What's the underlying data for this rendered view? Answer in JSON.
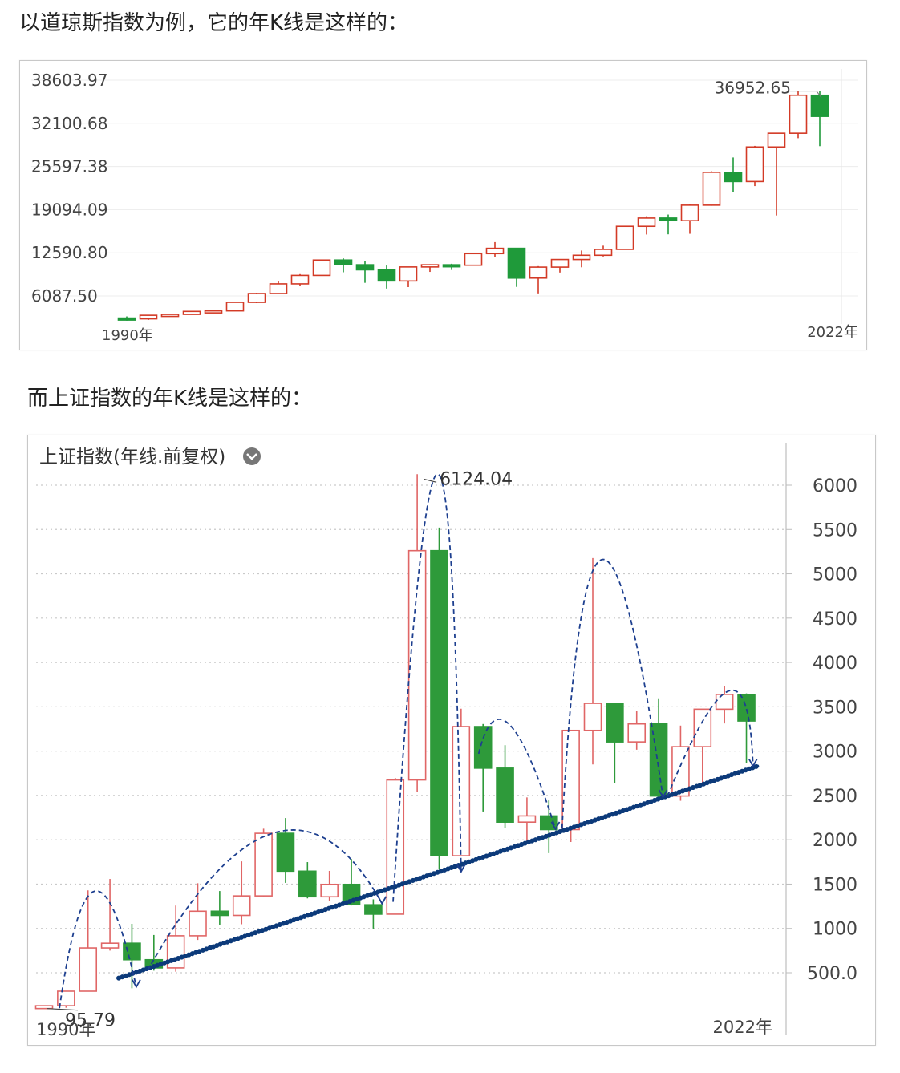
{
  "text": {
    "intro_dow": "以道琼斯指数为例，它的年K线是这样的：",
    "intro_sh": "而上证指数的年K线是这样的："
  },
  "colors": {
    "up": "#d33a26",
    "down": "#1f9a3a",
    "trend": "#0c3a7a",
    "arc": "#1d3f8f"
  },
  "chart_data": [
    {
      "type": "candlestick",
      "subject": "道琼斯指数 年K线",
      "y_ticks": [
        "38603.97",
        "32100.68",
        "25597.38",
        "19094.09",
        "12590.80",
        "6087.50"
      ],
      "x_start_label": "1990年",
      "x_end_label": "2022年",
      "annotation": "36952.65",
      "ylim": [
        0,
        40000
      ],
      "candles": [
        {
          "year": 1990,
          "o": 2753,
          "h": 3000,
          "l": 2365,
          "c": 2634
        },
        {
          "year": 1991,
          "o": 2634,
          "h": 3168,
          "l": 2470,
          "c": 3169
        },
        {
          "year": 1992,
          "o": 3169,
          "h": 3413,
          "l": 3136,
          "c": 3301
        },
        {
          "year": 1993,
          "o": 3301,
          "h": 3794,
          "l": 3242,
          "c": 3754
        },
        {
          "year": 1994,
          "o": 3754,
          "h": 3978,
          "l": 3593,
          "c": 3834
        },
        {
          "year": 1995,
          "o": 3834,
          "h": 5216,
          "l": 3832,
          "c": 5117
        },
        {
          "year": 1996,
          "o": 5117,
          "h": 6560,
          "l": 5000,
          "c": 6448
        },
        {
          "year": 1997,
          "o": 6448,
          "h": 8259,
          "l": 6391,
          "c": 7908
        },
        {
          "year": 1998,
          "o": 7908,
          "h": 9374,
          "l": 7539,
          "c": 9181
        },
        {
          "year": 1999,
          "o": 9181,
          "h": 11568,
          "l": 9121,
          "c": 11497
        },
        {
          "year": 2000,
          "o": 11497,
          "h": 11750,
          "l": 9654,
          "c": 10787
        },
        {
          "year": 2001,
          "o": 10787,
          "h": 11350,
          "l": 8062,
          "c": 10021
        },
        {
          "year": 2002,
          "o": 10021,
          "h": 10673,
          "l": 7197,
          "c": 8342
        },
        {
          "year": 2003,
          "o": 8342,
          "h": 10454,
          "l": 7416,
          "c": 10454
        },
        {
          "year": 2004,
          "o": 10454,
          "h": 10868,
          "l": 9708,
          "c": 10783
        },
        {
          "year": 2005,
          "o": 10783,
          "h": 10940,
          "l": 10000,
          "c": 10718
        },
        {
          "year": 2006,
          "o": 10718,
          "h": 12510,
          "l": 10667,
          "c": 12463
        },
        {
          "year": 2007,
          "o": 12463,
          "h": 14198,
          "l": 11939,
          "c": 13265
        },
        {
          "year": 2008,
          "o": 13265,
          "h": 13279,
          "l": 7449,
          "c": 8776
        },
        {
          "year": 2009,
          "o": 8776,
          "h": 10580,
          "l": 6470,
          "c": 10428
        },
        {
          "year": 2010,
          "o": 10428,
          "h": 11625,
          "l": 9614,
          "c": 11578
        },
        {
          "year": 2011,
          "o": 11578,
          "h": 12929,
          "l": 10404,
          "c": 12218
        },
        {
          "year": 2012,
          "o": 12218,
          "h": 13661,
          "l": 12035,
          "c": 13104
        },
        {
          "year": 2013,
          "o": 13104,
          "h": 16588,
          "l": 13104,
          "c": 16577
        },
        {
          "year": 2014,
          "o": 16577,
          "h": 18103,
          "l": 15341,
          "c": 17823
        },
        {
          "year": 2015,
          "o": 17823,
          "h": 18351,
          "l": 15370,
          "c": 17425
        },
        {
          "year": 2016,
          "o": 17425,
          "h": 19988,
          "l": 15450,
          "c": 19763
        },
        {
          "year": 2017,
          "o": 19763,
          "h": 24876,
          "l": 19677,
          "c": 24719
        },
        {
          "year": 2018,
          "o": 24719,
          "h": 26951,
          "l": 21713,
          "c": 23327
        },
        {
          "year": 2019,
          "o": 23327,
          "h": 28701,
          "l": 22638,
          "c": 28538
        },
        {
          "year": 2020,
          "o": 28538,
          "h": 30606,
          "l": 18214,
          "c": 30606
        },
        {
          "year": 2021,
          "o": 30606,
          "h": 36952,
          "l": 29856,
          "c": 36338
        },
        {
          "year": 2022,
          "o": 36338,
          "h": 36952,
          "l": 28660,
          "c": 33147
        }
      ]
    },
    {
      "type": "candlestick",
      "title": "上证指数(年线.前复权)",
      "y_ticks": [
        "6000",
        "5500",
        "5000",
        "4500",
        "4000",
        "3500",
        "3000",
        "2500",
        "2000",
        "1500",
        "1000",
        "500.0"
      ],
      "x_start_label": "1990年",
      "x_end_label": "2022年",
      "annotations": [
        "6124.04",
        "95.79"
      ],
      "ylim": [
        0,
        6300
      ],
      "candles": [
        {
          "year": 1990,
          "o": 96,
          "h": 128,
          "l": 95.79,
          "c": 128
        },
        {
          "year": 1991,
          "o": 128,
          "h": 292,
          "l": 105,
          "c": 292
        },
        {
          "year": 1992,
          "o": 292,
          "h": 1429,
          "l": 293,
          "c": 780
        },
        {
          "year": 1993,
          "o": 780,
          "h": 1558,
          "l": 750,
          "c": 833
        },
        {
          "year": 1994,
          "o": 833,
          "h": 1052,
          "l": 325,
          "c": 647
        },
        {
          "year": 1995,
          "o": 647,
          "h": 926,
          "l": 524,
          "c": 555
        },
        {
          "year": 1996,
          "o": 555,
          "h": 1258,
          "l": 512,
          "c": 917
        },
        {
          "year": 1997,
          "o": 917,
          "h": 1510,
          "l": 870,
          "c": 1194
        },
        {
          "year": 1998,
          "o": 1194,
          "h": 1422,
          "l": 1043,
          "c": 1147
        },
        {
          "year": 1999,
          "o": 1147,
          "h": 1756,
          "l": 1047,
          "c": 1367
        },
        {
          "year": 2000,
          "o": 1367,
          "h": 2125,
          "l": 1361,
          "c": 2073
        },
        {
          "year": 2001,
          "o": 2073,
          "h": 2245,
          "l": 1514,
          "c": 1646
        },
        {
          "year": 2002,
          "o": 1646,
          "h": 1748,
          "l": 1339,
          "c": 1357
        },
        {
          "year": 2003,
          "o": 1357,
          "h": 1649,
          "l": 1311,
          "c": 1497
        },
        {
          "year": 2004,
          "o": 1497,
          "h": 1783,
          "l": 1259,
          "c": 1267
        },
        {
          "year": 2005,
          "o": 1267,
          "h": 1328,
          "l": 998,
          "c": 1161
        },
        {
          "year": 2006,
          "o": 1161,
          "h": 2698,
          "l": 1161,
          "c": 2675
        },
        {
          "year": 2007,
          "o": 2675,
          "h": 6124.04,
          "l": 2541,
          "c": 5261
        },
        {
          "year": 2008,
          "o": 5261,
          "h": 5522,
          "l": 1664,
          "c": 1820
        },
        {
          "year": 2009,
          "o": 1820,
          "h": 3478,
          "l": 1844,
          "c": 3277
        },
        {
          "year": 2010,
          "o": 3277,
          "h": 3306,
          "l": 2319,
          "c": 2808
        },
        {
          "year": 2011,
          "o": 2808,
          "h": 3067,
          "l": 2134,
          "c": 2199
        },
        {
          "year": 2012,
          "o": 2199,
          "h": 2478,
          "l": 1949,
          "c": 2269
        },
        {
          "year": 2013,
          "o": 2269,
          "h": 2444,
          "l": 1849,
          "c": 2115
        },
        {
          "year": 2014,
          "o": 2115,
          "h": 3239,
          "l": 1974,
          "c": 3234
        },
        {
          "year": 2015,
          "o": 3234,
          "h": 5178,
          "l": 2850,
          "c": 3539
        },
        {
          "year": 2016,
          "o": 3539,
          "h": 3538,
          "l": 2638,
          "c": 3104
        },
        {
          "year": 2017,
          "o": 3104,
          "h": 3450,
          "l": 3016,
          "c": 3307
        },
        {
          "year": 2018,
          "o": 3307,
          "h": 3587,
          "l": 2449,
          "c": 2494
        },
        {
          "year": 2019,
          "o": 2494,
          "h": 3288,
          "l": 2440,
          "c": 3050
        },
        {
          "year": 2020,
          "o": 3050,
          "h": 3474,
          "l": 2646,
          "c": 3473
        },
        {
          "year": 2021,
          "o": 3473,
          "h": 3731,
          "l": 3312,
          "c": 3640
        },
        {
          "year": 2022,
          "o": 3640,
          "h": 3651,
          "l": 2863,
          "c": 3340
        }
      ]
    }
  ]
}
